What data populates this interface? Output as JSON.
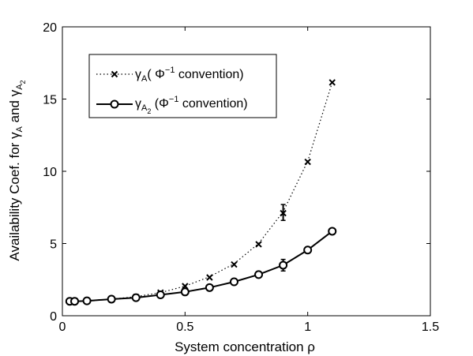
{
  "chart_data": {
    "type": "line",
    "xlabel": "System concentration ρ",
    "ylabel": "Availability  Coef. for γ",
    "ylabel_sub_a": "A",
    "ylabel_mid": " and γ",
    "ylabel_sub_a2": "A",
    "ylabel_sub_2": "2",
    "xlim": [
      0,
      1.5
    ],
    "ylim": [
      0,
      20
    ],
    "xticks": [
      0,
      0.5,
      1,
      1.5
    ],
    "xtick_labels": [
      "0",
      "0.5",
      "1",
      "1.5"
    ],
    "yticks": [
      0,
      5,
      10,
      15,
      20
    ],
    "ytick_labels": [
      "0",
      "5",
      "10",
      "15",
      "20"
    ],
    "grid": false,
    "legend_position": "top-left",
    "series": [
      {
        "name": "γA( Φ−1 convention)",
        "legend_parts": {
          "gamma": "γ",
          "sub": "A",
          "open": "( Φ",
          "sup": "−1",
          "close": " convention)"
        },
        "line_style": "dotted",
        "marker": "x",
        "color": "#000000",
        "points": [
          {
            "x": 0.03,
            "y": 1.0
          },
          {
            "x": 0.05,
            "y": 1.02
          },
          {
            "x": 0.1,
            "y": 1.05
          },
          {
            "x": 0.2,
            "y": 1.15
          },
          {
            "x": 0.3,
            "y": 1.3
          },
          {
            "x": 0.4,
            "y": 1.6
          },
          {
            "x": 0.5,
            "y": 2.05
          },
          {
            "x": 0.6,
            "y": 2.65
          },
          {
            "x": 0.7,
            "y": 3.55
          },
          {
            "x": 0.8,
            "y": 4.95
          },
          {
            "x": 0.9,
            "y": 7.1
          },
          {
            "x": 1.0,
            "y": 10.65
          },
          {
            "x": 1.1,
            "y": 16.15
          }
        ],
        "curve": [
          [
            0.03,
            1.0
          ],
          [
            0.1,
            1.05
          ],
          [
            0.2,
            1.15
          ],
          [
            0.3,
            1.32
          ],
          [
            0.4,
            1.6
          ],
          [
            0.5,
            2.05
          ],
          [
            0.6,
            2.7
          ],
          [
            0.7,
            3.6
          ],
          [
            0.8,
            5.0
          ],
          [
            0.9,
            7.2
          ],
          [
            1.0,
            10.7
          ],
          [
            1.1,
            16.15
          ]
        ],
        "error_bars": [
          {
            "x": 0.9,
            "y_low": 6.6,
            "y_high": 7.7
          }
        ]
      },
      {
        "name": "γA2 (Φ−1 convention)",
        "legend_parts": {
          "gamma": "γ",
          "sub": "A",
          "subsub": "2",
          "open": " (Φ",
          "sup": "−1",
          "close": " convention)"
        },
        "line_style": "solid",
        "marker": "o",
        "color": "#000000",
        "points": [
          {
            "x": 0.03,
            "y": 1.0
          },
          {
            "x": 0.05,
            "y": 1.0
          },
          {
            "x": 0.1,
            "y": 1.03
          },
          {
            "x": 0.2,
            "y": 1.15
          },
          {
            "x": 0.3,
            "y": 1.25
          },
          {
            "x": 0.4,
            "y": 1.45
          },
          {
            "x": 0.5,
            "y": 1.65
          },
          {
            "x": 0.6,
            "y": 1.95
          },
          {
            "x": 0.7,
            "y": 2.35
          },
          {
            "x": 0.8,
            "y": 2.85
          },
          {
            "x": 0.9,
            "y": 3.5
          },
          {
            "x": 1.0,
            "y": 4.55
          },
          {
            "x": 1.1,
            "y": 5.85
          }
        ],
        "error_bars": [
          {
            "x": 0.9,
            "y_low": 3.1,
            "y_high": 3.9
          }
        ]
      }
    ]
  }
}
